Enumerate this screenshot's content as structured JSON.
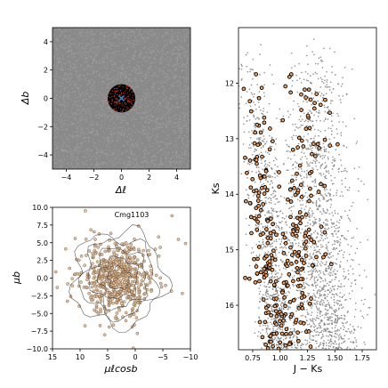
{
  "chart_data": [
    {
      "type": "scatter",
      "panel": "sky-position",
      "xlabel": "Δℓ",
      "ylabel": "Δb",
      "xlim": [
        -5,
        5
      ],
      "ylim": [
        -5,
        5
      ],
      "xticks": [
        -4,
        -2,
        0,
        2,
        4
      ],
      "yticks": [
        -4,
        -2,
        0,
        2,
        4
      ],
      "background_color": "#8a8a8a",
      "selection_radius": 1,
      "center_marker": {
        "symbol": "x",
        "x": 0,
        "y": 0,
        "color": "#3a8fd1"
      },
      "series": [
        {
          "role": "field stars",
          "color": "#9e9e9e"
        },
        {
          "role": "cluster members",
          "color": "#c0392b"
        }
      ]
    },
    {
      "type": "scatter",
      "panel": "proper-motion",
      "annotation": "Cmg1103",
      "xlabel": "μℓcosb",
      "ylabel": "μb",
      "xlim": [
        15,
        -10
      ],
      "ylim": [
        -10,
        10
      ],
      "xticks": [
        15,
        10,
        5,
        0,
        -5,
        -10
      ],
      "yticks": [
        -10.0,
        -7.5,
        -5.0,
        -2.5,
        0.0,
        2.5,
        5.0,
        7.5,
        10.0
      ],
      "ytick_labels": [
        "−10.0",
        "−7.5",
        "−5.0",
        "−2.5",
        "0.0",
        "2.5",
        "5.0",
        "7.5",
        "10.0"
      ],
      "xtick_labels": [
        "15",
        "10",
        "5",
        "0",
        "−5",
        "−10"
      ],
      "center": [
        3,
        0
      ],
      "spread": [
        3.2,
        2.6
      ],
      "contours": true,
      "series": [
        {
          "role": "stars",
          "color": "#d9b38c",
          "edge": "#6b4a2b"
        }
      ]
    },
    {
      "type": "scatter",
      "panel": "color-magnitude",
      "xlabel": "J − Ks",
      "ylabel": "Ks",
      "xlim": [
        0.62,
        1.88
      ],
      "ylim": [
        16.8,
        11.0
      ],
      "xticks": [
        0.75,
        1.0,
        1.25,
        1.5,
        1.75
      ],
      "xtick_labels": [
        "0.75",
        "1.00",
        "1.25",
        "1.50",
        "1.75"
      ],
      "yticks": [
        12,
        13,
        14,
        15,
        16
      ],
      "series": [
        {
          "role": "field stars",
          "color": "#8c8c8c"
        },
        {
          "role": "cluster members",
          "color": "#f0a060",
          "edge": "#000000"
        }
      ]
    }
  ]
}
